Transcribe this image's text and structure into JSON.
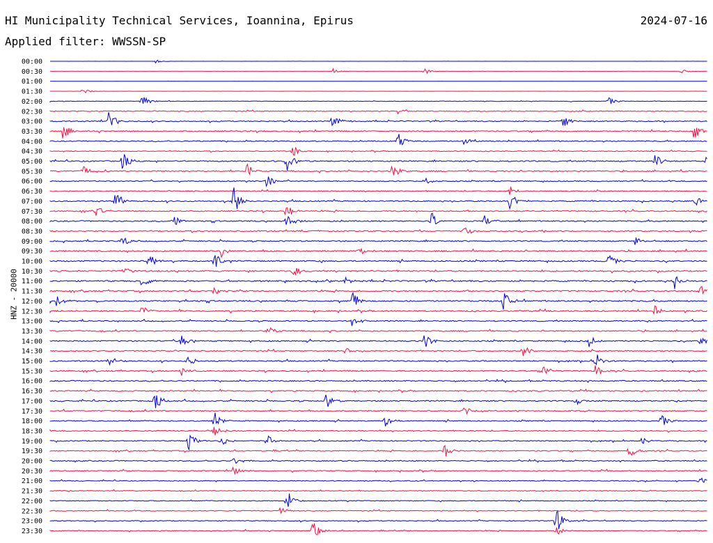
{
  "header": {
    "station": "HI Municipality Technical Services, Ioannina, Epirus",
    "date": "2024-07-16",
    "filter": "Applied filter: WWSSN-SP"
  },
  "channel_label": "HNZ - 20000",
  "colors": {
    "even_rows": "#0000dd",
    "odd_rows": "#ee1144"
  },
  "chart_data": {
    "type": "line",
    "title": "HI Municipality Technical Services, Ioannina, Epirus",
    "ylabel": "HNZ - 20000",
    "row_labels": [
      "00:00",
      "00:30",
      "01:00",
      "01:30",
      "02:00",
      "02:30",
      "03:00",
      "03:30",
      "04:00",
      "04:30",
      "05:00",
      "05:30",
      "06:00",
      "06:30",
      "07:00",
      "07:30",
      "08:00",
      "08:30",
      "09:00",
      "09:30",
      "10:00",
      "10:30",
      "11:00",
      "11:30",
      "12:00",
      "12:30",
      "13:00",
      "13:30",
      "14:00",
      "14:30",
      "15:00",
      "15:30",
      "16:00",
      "16:30",
      "17:00",
      "17:30",
      "18:00",
      "18:30",
      "19:00",
      "19:30",
      "20:00",
      "20:30",
      "21:00",
      "21:30",
      "22:00",
      "22:30",
      "23:00",
      "23:30"
    ],
    "noise_level": [
      0.05,
      0.1,
      0.05,
      0.08,
      0.3,
      0.5,
      0.6,
      0.7,
      0.6,
      0.5,
      0.7,
      0.7,
      0.6,
      0.6,
      0.7,
      0.7,
      0.7,
      0.7,
      0.7,
      0.8,
      0.8,
      0.8,
      0.8,
      0.8,
      0.8,
      0.8,
      0.7,
      0.7,
      0.7,
      0.7,
      0.7,
      0.7,
      0.7,
      0.7,
      0.7,
      0.7,
      0.6,
      0.6,
      0.6,
      0.6,
      0.6,
      0.6,
      0.5,
      0.5,
      0.5,
      0.5,
      0.5,
      0.5
    ],
    "events": [
      {
        "row": 0,
        "x": 0.16,
        "amp": 0.2
      },
      {
        "row": 1,
        "x": 0.43,
        "amp": 0.3
      },
      {
        "row": 1,
        "x": 0.57,
        "amp": 0.35
      },
      {
        "row": 1,
        "x": 0.96,
        "amp": 0.25
      },
      {
        "row": 3,
        "x": 0.05,
        "amp": 0.3
      },
      {
        "row": 4,
        "x": 0.14,
        "amp": 0.9
      },
      {
        "row": 4,
        "x": 0.85,
        "amp": 0.4
      },
      {
        "row": 5,
        "x": 0.53,
        "amp": 0.5
      },
      {
        "row": 6,
        "x": 0.09,
        "amp": 1.3
      },
      {
        "row": 6,
        "x": 0.43,
        "amp": 0.8
      },
      {
        "row": 6,
        "x": 0.78,
        "amp": 0.8
      },
      {
        "row": 7,
        "x": 0.02,
        "amp": 1.0
      },
      {
        "row": 7,
        "x": 0.98,
        "amp": 1.0
      },
      {
        "row": 8,
        "x": 0.53,
        "amp": 1.0
      },
      {
        "row": 8,
        "x": 0.63,
        "amp": 0.5
      },
      {
        "row": 9,
        "x": 0.37,
        "amp": 0.6
      },
      {
        "row": 10,
        "x": 0.11,
        "amp": 1.0
      },
      {
        "row": 10,
        "x": 0.36,
        "amp": 1.2
      },
      {
        "row": 10,
        "x": 0.92,
        "amp": 0.8
      },
      {
        "row": 10,
        "x": 1.0,
        "amp": 1.2
      },
      {
        "row": 11,
        "x": 0.05,
        "amp": 0.6
      },
      {
        "row": 11,
        "x": 0.3,
        "amp": 0.8
      },
      {
        "row": 11,
        "x": 0.52,
        "amp": 1.0
      },
      {
        "row": 12,
        "x": 0.33,
        "amp": 0.8
      },
      {
        "row": 12,
        "x": 0.57,
        "amp": 0.5
      },
      {
        "row": 13,
        "x": 0.7,
        "amp": 0.6
      },
      {
        "row": 14,
        "x": 0.1,
        "amp": 1.0
      },
      {
        "row": 14,
        "x": 0.28,
        "amp": 1.6
      },
      {
        "row": 14,
        "x": 0.7,
        "amp": 1.2
      },
      {
        "row": 14,
        "x": 0.98,
        "amp": 0.8
      },
      {
        "row": 15,
        "x": 0.07,
        "amp": 0.6
      },
      {
        "row": 15,
        "x": 0.36,
        "amp": 0.8
      },
      {
        "row": 16,
        "x": 0.19,
        "amp": 0.6
      },
      {
        "row": 16,
        "x": 0.36,
        "amp": 0.8
      },
      {
        "row": 16,
        "x": 0.58,
        "amp": 1.0
      },
      {
        "row": 16,
        "x": 0.66,
        "amp": 0.7
      },
      {
        "row": 17,
        "x": 0.63,
        "amp": 0.6
      },
      {
        "row": 18,
        "x": 0.11,
        "amp": 0.6
      },
      {
        "row": 18,
        "x": 0.89,
        "amp": 0.5
      },
      {
        "row": 19,
        "x": 0.26,
        "amp": 0.7
      },
      {
        "row": 19,
        "x": 0.47,
        "amp": 0.5
      },
      {
        "row": 20,
        "x": 0.15,
        "amp": 0.9
      },
      {
        "row": 20,
        "x": 0.25,
        "amp": 0.9
      },
      {
        "row": 20,
        "x": 0.85,
        "amp": 0.8
      },
      {
        "row": 21,
        "x": 0.11,
        "amp": 0.6
      },
      {
        "row": 21,
        "x": 0.37,
        "amp": 0.7
      },
      {
        "row": 22,
        "x": 0.14,
        "amp": 0.8
      },
      {
        "row": 22,
        "x": 0.45,
        "amp": 0.5
      },
      {
        "row": 22,
        "x": 0.95,
        "amp": 0.8
      },
      {
        "row": 23,
        "x": 0.25,
        "amp": 0.6
      },
      {
        "row": 23,
        "x": 0.99,
        "amp": 0.6
      },
      {
        "row": 24,
        "x": 0.01,
        "amp": 0.6
      },
      {
        "row": 24,
        "x": 0.46,
        "amp": 1.0
      },
      {
        "row": 24,
        "x": 0.69,
        "amp": 1.0
      },
      {
        "row": 25,
        "x": 0.14,
        "amp": 0.6
      },
      {
        "row": 25,
        "x": 0.92,
        "amp": 0.6
      },
      {
        "row": 26,
        "x": 0.46,
        "amp": 0.7
      },
      {
        "row": 27,
        "x": 0.33,
        "amp": 0.8
      },
      {
        "row": 28,
        "x": 0.2,
        "amp": 0.7
      },
      {
        "row": 28,
        "x": 0.57,
        "amp": 1.0
      },
      {
        "row": 28,
        "x": 0.82,
        "amp": 0.6
      },
      {
        "row": 28,
        "x": 0.99,
        "amp": 0.7
      },
      {
        "row": 29,
        "x": 0.45,
        "amp": 0.6
      },
      {
        "row": 29,
        "x": 0.72,
        "amp": 0.8
      },
      {
        "row": 30,
        "x": 0.09,
        "amp": 0.6
      },
      {
        "row": 30,
        "x": 0.21,
        "amp": 0.6
      },
      {
        "row": 30,
        "x": 0.83,
        "amp": 1.0
      },
      {
        "row": 31,
        "x": 0.2,
        "amp": 0.5
      },
      {
        "row": 31,
        "x": 0.75,
        "amp": 0.6
      },
      {
        "row": 31,
        "x": 0.83,
        "amp": 0.9
      },
      {
        "row": 34,
        "x": 0.16,
        "amp": 0.9
      },
      {
        "row": 34,
        "x": 0.42,
        "amp": 0.8
      },
      {
        "row": 34,
        "x": 0.8,
        "amp": 0.4
      },
      {
        "row": 35,
        "x": 0.63,
        "amp": 0.5
      },
      {
        "row": 36,
        "x": 0.25,
        "amp": 1.0
      },
      {
        "row": 36,
        "x": 0.51,
        "amp": 0.7
      },
      {
        "row": 36,
        "x": 0.93,
        "amp": 0.7
      },
      {
        "row": 37,
        "x": 0.25,
        "amp": 0.6
      },
      {
        "row": 38,
        "x": 0.21,
        "amp": 1.0
      },
      {
        "row": 38,
        "x": 0.26,
        "amp": 0.6
      },
      {
        "row": 38,
        "x": 0.33,
        "amp": 0.7
      },
      {
        "row": 38,
        "x": 0.9,
        "amp": 0.4
      },
      {
        "row": 39,
        "x": 0.6,
        "amp": 0.9
      },
      {
        "row": 39,
        "x": 0.88,
        "amp": 0.9
      },
      {
        "row": 40,
        "x": 0.28,
        "amp": 0.5
      },
      {
        "row": 41,
        "x": 0.28,
        "amp": 0.7
      },
      {
        "row": 42,
        "x": 0.99,
        "amp": 0.4
      },
      {
        "row": 44,
        "x": 0.36,
        "amp": 1.3
      },
      {
        "row": 45,
        "x": 0.35,
        "amp": 0.4
      },
      {
        "row": 46,
        "x": 0.77,
        "amp": 1.4
      },
      {
        "row": 47,
        "x": 0.4,
        "amp": 1.4
      },
      {
        "row": 47,
        "x": 0.77,
        "amp": 0.5
      }
    ]
  }
}
